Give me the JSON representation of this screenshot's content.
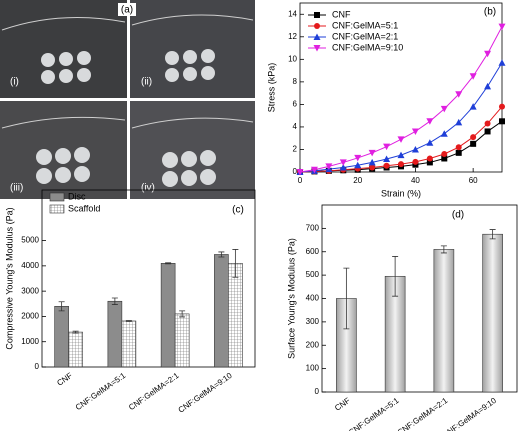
{
  "photo_panel": {
    "label": "(a)",
    "photos": [
      "(i)",
      "(ii)",
      "(iii)",
      "(iv)"
    ]
  },
  "chart_data": [
    {
      "type": "line",
      "title": "(b)",
      "x_label": "Strain (%)",
      "y_label": "Stress (kPa)",
      "x": [
        0,
        5,
        10,
        15,
        20,
        25,
        30,
        35,
        40,
        45,
        50,
        55,
        60,
        65,
        70
      ],
      "xlim": [
        0,
        70
      ],
      "xticks": [
        0,
        20,
        40,
        60
      ],
      "ylim": [
        0,
        15
      ],
      "yticks": [
        0,
        2,
        4,
        6,
        8,
        10,
        12,
        14
      ],
      "legend": "upper-left",
      "series": [
        {
          "name": "CNF",
          "color": "#000000",
          "marker": "square",
          "values": [
            0,
            0.05,
            0.1,
            0.15,
            0.2,
            0.3,
            0.4,
            0.5,
            0.65,
            0.85,
            1.2,
            1.7,
            2.5,
            3.6,
            4.5
          ]
        },
        {
          "name": "CNF:GelMA=5:1",
          "color": "#e41a1c",
          "marker": "circle",
          "values": [
            0,
            0.05,
            0.1,
            0.2,
            0.3,
            0.4,
            0.55,
            0.7,
            0.9,
            1.2,
            1.6,
            2.2,
            3.1,
            4.3,
            5.8
          ]
        },
        {
          "name": "CNF:GelMA=2:1",
          "color": "#1f3fd8",
          "marker": "triangle-up",
          "values": [
            0,
            0.1,
            0.25,
            0.4,
            0.6,
            0.85,
            1.15,
            1.5,
            2.0,
            2.6,
            3.4,
            4.4,
            5.8,
            7.6,
            9.7
          ]
        },
        {
          "name": "CNF:GelMA=9:10",
          "color": "#e020e0",
          "marker": "triangle-down",
          "values": [
            0,
            0.2,
            0.5,
            0.85,
            1.25,
            1.7,
            2.25,
            2.9,
            3.6,
            4.5,
            5.6,
            6.9,
            8.5,
            10.5,
            12.9
          ]
        }
      ]
    },
    {
      "type": "bar",
      "title": "(c)",
      "y_label": "Compressive Young's Modulus (Pa)",
      "categories": [
        "CNF",
        "CNF:GelMA=5:1",
        "CNF:GelMA=2:1",
        "CNF:GelMA=9:10"
      ],
      "ylim": [
        0,
        7000
      ],
      "yticks": [
        0,
        1000,
        2000,
        3000,
        4000,
        5000
      ],
      "legend": "upper-left",
      "series": [
        {
          "name": "Disc",
          "color": "#8c8c8c",
          "values": [
            2400,
            2600,
            4100,
            4450
          ],
          "errors": [
            180,
            130,
            20,
            100
          ]
        },
        {
          "name": "Scaffold",
          "color": "#8c8c8c",
          "hatch": "grid",
          "values": [
            1380,
            1820,
            2100,
            4100
          ],
          "errors": [
            40,
            20,
            120,
            550
          ]
        }
      ]
    },
    {
      "type": "bar",
      "title": "(d)",
      "y_label": "Surface Young's Modulus (Pa)",
      "categories": [
        "CNF",
        "CNF:GelMA=5:1",
        "CNF:GelMA=2:1",
        "CNF:GelMA=9:10"
      ],
      "ylim": [
        0,
        800
      ],
      "yticks": [
        0,
        100,
        200,
        300,
        400,
        500,
        600,
        700
      ],
      "series": [
        {
          "color": "#a0a0a0",
          "gradient": true,
          "values": [
            400,
            495,
            610,
            675
          ],
          "errors": [
            130,
            85,
            15,
            20
          ]
        }
      ]
    }
  ]
}
